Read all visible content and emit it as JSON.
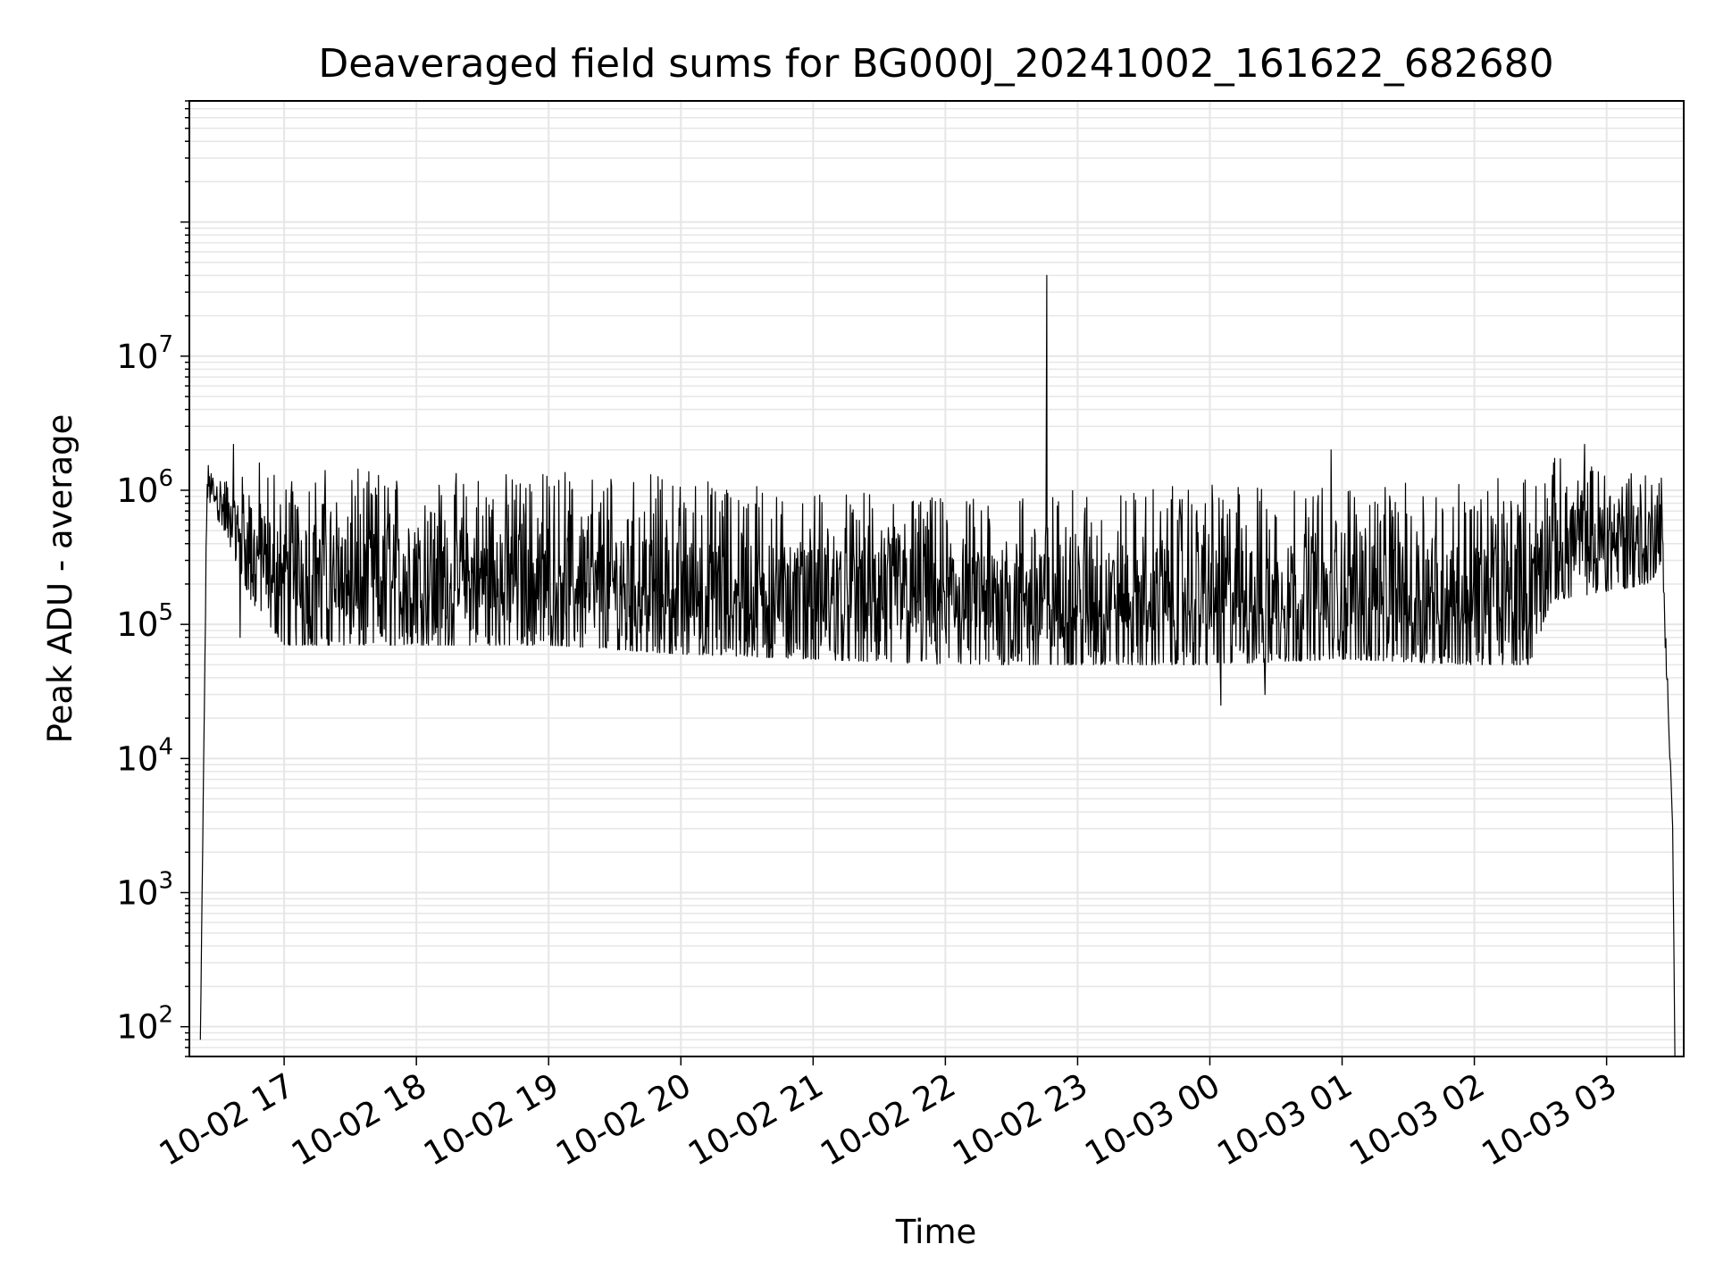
{
  "chart_data": {
    "type": "line",
    "title": "Deaveraged field sums for BG000J_20241002_161622_682680",
    "xlabel": "Time",
    "ylabel": "Peak ADU - average",
    "yscale": "log",
    "ylim": [
      60,
      800000000
    ],
    "xlim": [
      "2024-10-02 16:17",
      "2024-10-03 03:35"
    ],
    "grid": true,
    "line_color": "#000000",
    "x_ticks": [
      {
        "label": "10-02 17",
        "time": "2024-10-02 17:00"
      },
      {
        "label": "10-02 18",
        "time": "2024-10-02 18:00"
      },
      {
        "label": "10-02 19",
        "time": "2024-10-02 19:00"
      },
      {
        "label": "10-02 20",
        "time": "2024-10-02 20:00"
      },
      {
        "label": "10-02 21",
        "time": "2024-10-02 21:00"
      },
      {
        "label": "10-02 22",
        "time": "2024-10-02 22:00"
      },
      {
        "label": "10-02 23",
        "time": "2024-10-02 23:00"
      },
      {
        "label": "10-03 00",
        "time": "2024-10-03 00:00"
      },
      {
        "label": "10-03 01",
        "time": "2024-10-03 01:00"
      },
      {
        "label": "10-03 02",
        "time": "2024-10-03 02:00"
      },
      {
        "label": "10-03 03",
        "time": "2024-10-03 03:00"
      }
    ],
    "y_ticks": [
      {
        "base": "10",
        "exp": "2",
        "value": 100
      },
      {
        "base": "10",
        "exp": "3",
        "value": 1000
      },
      {
        "base": "10",
        "exp": "4",
        "value": 10000
      },
      {
        "base": "10",
        "exp": "5",
        "value": 100000
      },
      {
        "base": "10",
        "exp": "6",
        "value": 1000000
      },
      {
        "base": "10",
        "exp": "7",
        "value": 10000000
      }
    ],
    "profile": [
      {
        "time": "2024-10-02 16:22",
        "lo": 80,
        "hi": 80
      },
      {
        "time": "2024-10-02 16:25",
        "lo": 900000,
        "hi": 1600000
      },
      {
        "time": "2024-10-02 16:35",
        "lo": 400000,
        "hi": 1300000
      },
      {
        "time": "2024-10-02 16:45",
        "lo": 150000,
        "hi": 1800000
      },
      {
        "time": "2024-10-02 17:00",
        "lo": 70000,
        "hi": 1500000
      },
      {
        "time": "2024-10-02 18:00",
        "lo": 70000,
        "hi": 1400000
      },
      {
        "time": "2024-10-02 19:00",
        "lo": 70000,
        "hi": 1400000
      },
      {
        "time": "2024-10-02 20:00",
        "lo": 60000,
        "hi": 1300000
      },
      {
        "time": "2024-10-02 21:00",
        "lo": 55000,
        "hi": 1000000
      },
      {
        "time": "2024-10-02 22:00",
        "lo": 50000,
        "hi": 900000
      },
      {
        "time": "2024-10-02 23:00",
        "lo": 50000,
        "hi": 1000000
      },
      {
        "time": "2024-10-03 00:00",
        "lo": 50000,
        "hi": 1100000
      },
      {
        "time": "2024-10-03 01:00",
        "lo": 55000,
        "hi": 1100000
      },
      {
        "time": "2024-10-03 02:00",
        "lo": 50000,
        "hi": 1200000
      },
      {
        "time": "2024-10-03 02:25",
        "lo": 50000,
        "hi": 1300000
      },
      {
        "time": "2024-10-03 02:35",
        "lo": 150000,
        "hi": 1800000
      },
      {
        "time": "2024-10-03 03:20",
        "lo": 200000,
        "hi": 1700000
      },
      {
        "time": "2024-10-03 03:25",
        "lo": 300000,
        "hi": 1300000
      },
      {
        "time": "2024-10-03 03:30",
        "lo": 3000,
        "hi": 3000
      },
      {
        "time": "2024-10-03 03:31",
        "lo": 60,
        "hi": 60
      }
    ],
    "spikes": [
      {
        "time": "2024-10-02 22:46",
        "value": 40000000
      },
      {
        "time": "2024-10-03 00:05",
        "value": 25000
      },
      {
        "time": "2024-10-03 00:25",
        "value": 30000
      },
      {
        "time": "2024-10-02 16:40",
        "value": 80000
      },
      {
        "time": "2024-10-03 00:55",
        "value": 2000000
      },
      {
        "time": "2024-10-03 02:50",
        "value": 2200000
      },
      {
        "time": "2024-10-02 16:37",
        "value": 2200000
      }
    ]
  }
}
